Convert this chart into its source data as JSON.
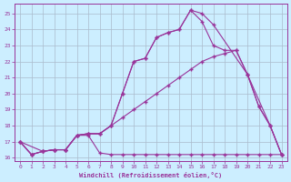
{
  "xlabel": "Windchill (Refroidissement éolien,°C)",
  "xlim": [
    -0.5,
    23.5
  ],
  "ylim": [
    15.8,
    25.6
  ],
  "yticks": [
    16,
    17,
    18,
    19,
    20,
    21,
    22,
    23,
    24,
    25
  ],
  "xticks": [
    0,
    1,
    2,
    3,
    4,
    5,
    6,
    7,
    8,
    9,
    10,
    11,
    12,
    13,
    14,
    15,
    16,
    17,
    18,
    19,
    20,
    21,
    22,
    23
  ],
  "bg_color": "#cceeff",
  "grid_color": "#aabbcc",
  "line_color": "#993399",
  "line1_x": [
    0,
    1,
    2,
    3,
    4,
    5,
    6,
    7,
    8,
    9,
    10,
    11,
    12,
    13,
    14,
    15,
    16,
    17,
    18,
    19,
    20,
    21,
    22,
    23
  ],
  "line1_y": [
    17.0,
    16.2,
    16.4,
    16.5,
    16.5,
    17.4,
    17.4,
    16.3,
    16.2,
    16.2,
    16.2,
    16.2,
    16.2,
    16.2,
    16.2,
    16.2,
    16.2,
    16.2,
    16.2,
    16.2,
    16.2,
    16.2,
    16.2,
    16.2
  ],
  "line2_x": [
    0,
    1,
    2,
    3,
    4,
    5,
    6,
    7,
    8,
    9,
    10,
    11,
    12,
    13,
    14,
    15,
    16,
    17,
    18,
    19,
    20,
    21,
    22,
    23
  ],
  "line2_y": [
    17.0,
    16.2,
    16.4,
    16.5,
    16.5,
    17.4,
    17.5,
    17.5,
    18.0,
    18.5,
    19.0,
    19.5,
    20.0,
    20.5,
    21.0,
    21.5,
    22.0,
    22.3,
    22.5,
    22.7,
    21.2,
    19.2,
    18.0,
    16.2
  ],
  "line3_x": [
    0,
    2,
    3,
    4,
    5,
    6,
    7,
    8,
    9,
    10,
    11,
    12,
    13,
    14,
    15,
    16,
    17,
    20,
    22,
    23
  ],
  "line3_y": [
    17.0,
    16.4,
    16.5,
    16.5,
    17.4,
    17.5,
    17.5,
    18.0,
    20.0,
    22.0,
    22.2,
    23.5,
    23.8,
    24.0,
    25.2,
    25.0,
    24.3,
    21.2,
    18.0,
    16.2
  ],
  "line4_x": [
    0,
    1,
    2,
    3,
    4,
    5,
    6,
    7,
    8,
    9,
    10,
    11,
    12,
    13,
    14,
    15,
    16,
    17,
    18,
    19,
    20,
    21,
    22,
    23
  ],
  "line4_y": [
    17.0,
    16.2,
    16.4,
    16.5,
    16.5,
    17.4,
    17.5,
    17.5,
    18.0,
    20.0,
    22.0,
    22.2,
    23.5,
    23.8,
    24.0,
    25.2,
    24.5,
    23.0,
    22.7,
    22.7,
    21.2,
    19.2,
    18.0,
    16.2
  ]
}
